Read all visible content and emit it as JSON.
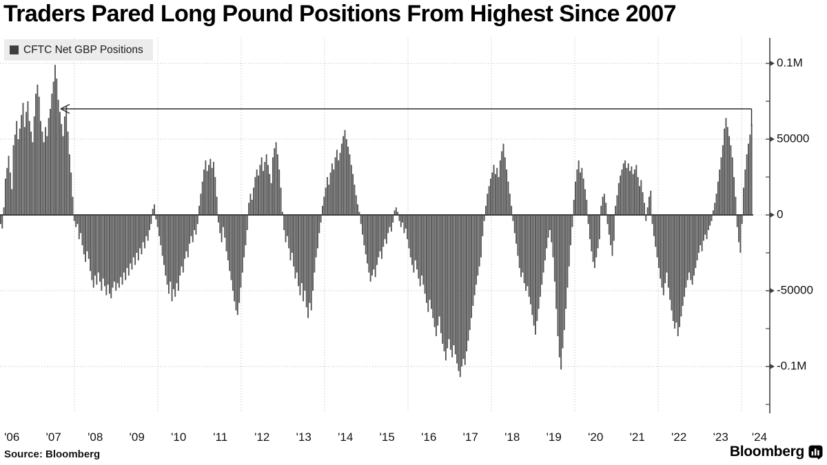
{
  "title": "Traders Pared Long Pound Positions From Highest Since 2007",
  "legend": {
    "label": "CFTC Net GBP Positions",
    "swatch_color": "#3f3f3f"
  },
  "source": "Source: Bloomberg",
  "branding": {
    "logo_text": "Bloomberg",
    "logo_icon": "bloomberg-chart-icon"
  },
  "colors": {
    "bar": "#535353",
    "axis": "#3f3f3f",
    "grid": "#c7c7c7",
    "text": "#111111",
    "annotation": "#2b2b2b",
    "legend_bg": "#ececec",
    "background": "#ffffff"
  },
  "chart_data": {
    "type": "bar",
    "title": "Traders Pared Long Pound Positions From Highest Since 2007",
    "series_name": "CFTC Net GBP Positions",
    "xlabel": "",
    "ylabel": "",
    "ylim": [
      -131000,
      117000
    ],
    "grid": "dotted",
    "legend_position": "top-left",
    "x_start_year": 2006.23,
    "x_step_years": 0.03844,
    "unit_multiplier": 1000,
    "y_ticks": [
      {
        "value": 100000,
        "label": "0.1M"
      },
      {
        "value": 50000,
        "label": "50000"
      },
      {
        "value": 0,
        "label": "0"
      },
      {
        "value": -50000,
        "label": "-50000"
      },
      {
        "value": -100000,
        "label": "-0.1M"
      }
    ],
    "y_minor_ticks": [
      75000,
      25000,
      -25000,
      -75000,
      -125000
    ],
    "x_tick_labels": [
      "'06",
      "'07",
      "'08",
      "'09",
      "'10",
      "'11",
      "'12",
      "'13",
      "'14",
      "'15",
      "'16",
      "'17",
      "'18",
      "'19",
      "'20",
      "'21",
      "'22",
      "'23",
      "'24"
    ],
    "grid_years": [
      2008,
      2010,
      2012,
      2014,
      2016,
      2018,
      2020,
      2022,
      2024
    ],
    "annotation": {
      "type": "arrow",
      "description": "horizontal arrow from latest bar back to 2007 peak",
      "y_value": 70000,
      "from_x_year": 2024.24,
      "to_x_year": 2007.67,
      "drop_to_value": 59000
    },
    "values_thousands": [
      -6,
      -9,
      5,
      24,
      31,
      39,
      28,
      17,
      46,
      53,
      62,
      50,
      57,
      66,
      74,
      58,
      68,
      75,
      62,
      55,
      48,
      65,
      80,
      86,
      78,
      62,
      55,
      48,
      58,
      52,
      64,
      70,
      80,
      88,
      99,
      90,
      76,
      68,
      60,
      52,
      65,
      72,
      55,
      40,
      28,
      12,
      -4,
      -8,
      -6,
      -16,
      -12,
      -20,
      -26,
      -31,
      -24,
      -29,
      -37,
      -43,
      -48,
      -40,
      -46,
      -38,
      -44,
      -50,
      -42,
      -47,
      -53,
      -46,
      -52,
      -55,
      -48,
      -44,
      -50,
      -45,
      -48,
      -41,
      -46,
      -38,
      -43,
      -35,
      -40,
      -32,
      -36,
      -28,
      -33,
      -25,
      -30,
      -22,
      -26,
      -18,
      -22,
      -14,
      -17,
      -10,
      -6,
      4,
      7,
      -3,
      -8,
      -14,
      -20,
      -27,
      -33,
      -40,
      -46,
      -52,
      -44,
      -57,
      -49,
      -54,
      -45,
      -50,
      -40,
      -34,
      -38,
      -29,
      -24,
      -28,
      -19,
      -14,
      -18,
      -10,
      -13,
      -6,
      6,
      14,
      22,
      30,
      36,
      29,
      33,
      37,
      31,
      35,
      25,
      12,
      -5,
      -12,
      -18,
      -8,
      -15,
      -24,
      -30,
      -37,
      -43,
      -50,
      -57,
      -63,
      -66,
      -58,
      -48,
      -38,
      -28,
      -20,
      -10,
      8,
      14,
      10,
      18,
      25,
      30,
      26,
      33,
      38,
      29,
      35,
      40,
      33,
      27,
      21,
      38,
      44,
      48,
      40,
      30,
      18,
      2,
      -10,
      -18,
      -14,
      -22,
      -30,
      -25,
      -34,
      -42,
      -38,
      -47,
      -53,
      -45,
      -57,
      -50,
      -61,
      -68,
      -58,
      -63,
      -50,
      -38,
      -28,
      -22,
      -12,
      -5,
      6,
      12,
      18,
      25,
      20,
      28,
      34,
      30,
      38,
      43,
      36,
      41,
      47,
      52,
      56,
      50,
      45,
      40,
      33,
      27,
      20,
      13,
      7,
      2,
      -6,
      -13,
      -20,
      -26,
      -32,
      -38,
      -44,
      -40,
      -36,
      -41,
      -33,
      -28,
      -24,
      -29,
      -21,
      -16,
      -19,
      -12,
      -8,
      -11,
      -5,
      3,
      5,
      2,
      -4,
      -8,
      -5,
      -12,
      -9,
      -16,
      -22,
      -28,
      -33,
      -38,
      -30,
      -36,
      -42,
      -47,
      -40,
      -46,
      -52,
      -58,
      -64,
      -56,
      -62,
      -68,
      -74,
      -80,
      -73,
      -67,
      -78,
      -85,
      -90,
      -96,
      -88,
      -82,
      -89,
      -94,
      -86,
      -92,
      -98,
      -103,
      -107,
      -100,
      -95,
      -99,
      -90,
      -83,
      -76,
      -68,
      -60,
      -53,
      -46,
      -40,
      -34,
      -28,
      -14,
      -4,
      6,
      14,
      19,
      24,
      28,
      33,
      27,
      31,
      25,
      36,
      42,
      47,
      38,
      30,
      22,
      14,
      6,
      -4,
      -12,
      -19,
      -27,
      -35,
      -41,
      -38,
      -45,
      -50,
      -47,
      -54,
      -59,
      -66,
      -73,
      -79,
      -70,
      -62,
      -54,
      -46,
      -38,
      -30,
      -22,
      -15,
      -10,
      -18,
      -28,
      -44,
      -62,
      -80,
      -94,
      -102,
      -88,
      -76,
      -62,
      -48,
      -34,
      -20,
      -8,
      10,
      22,
      30,
      36,
      28,
      31,
      24,
      17,
      10,
      -6,
      -16,
      -24,
      -31,
      -35,
      -28,
      -22,
      -16,
      6,
      12,
      14,
      8,
      -6,
      -13,
      -20,
      -27,
      -17,
      6,
      13,
      21,
      26,
      30,
      34,
      36,
      31,
      34,
      29,
      32,
      27,
      30,
      33,
      25,
      19,
      23,
      15,
      8,
      -4,
      5,
      12,
      16,
      -6,
      -14,
      -21,
      -28,
      -35,
      -42,
      -48,
      -53,
      -45,
      -38,
      -48,
      -56,
      -63,
      -70,
      -75,
      -71,
      -80,
      -74,
      -67,
      -60,
      -54,
      -48,
      -43,
      -38,
      -43,
      -46,
      -40,
      -35,
      -30,
      -25,
      -20,
      -24,
      -17,
      -13,
      -16,
      -10,
      -7,
      -4,
      3,
      8,
      14,
      22,
      30,
      38,
      46,
      57,
      64,
      58,
      52,
      46,
      38,
      25,
      12,
      -8,
      -18,
      -25,
      -6,
      18,
      30,
      40,
      47,
      53,
      60
    ]
  }
}
